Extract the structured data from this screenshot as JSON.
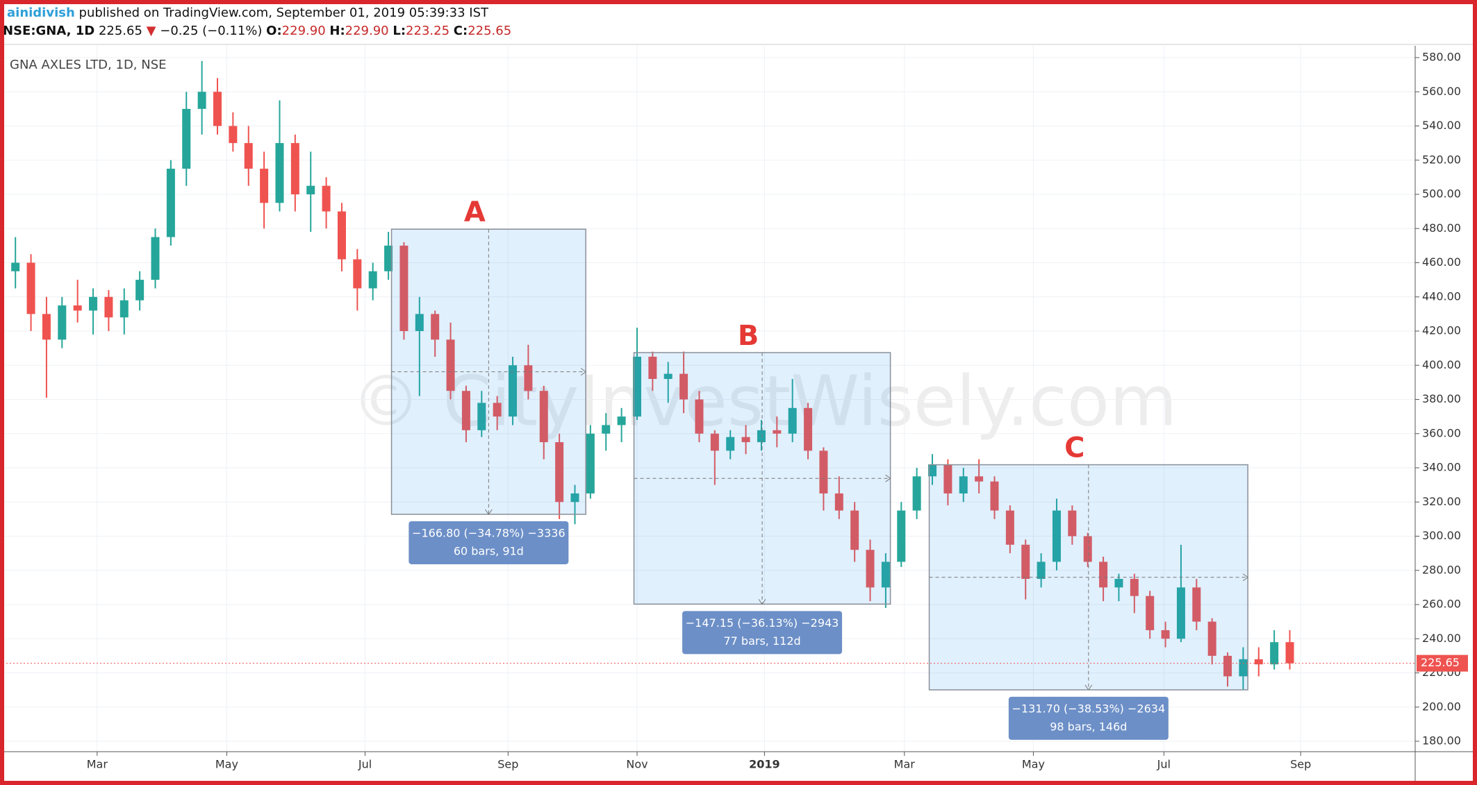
{
  "header": {
    "publisher": "ainidivish",
    "published_text": "published on TradingView.com, September 01, 2019 05:39:33 IST",
    "symbol": "NSE:GNA, 1D",
    "last": "225.65",
    "change": "−0.25 (−0.11%)",
    "ohlc": [
      {
        "label": "O:",
        "value": "229.90"
      },
      {
        "label": "H:",
        "value": "229.90"
      },
      {
        "label": "L:",
        "value": "223.25"
      },
      {
        "label": "C:",
        "value": "225.65"
      }
    ]
  },
  "chart_data": {
    "type": "candlestick",
    "title": "GNA AXLES LTD, 1D, NSE",
    "watermark": "© CityInvestWisely.com",
    "up_color": "#26a69a",
    "down_color": "#ef5350",
    "open": [
      455,
      460,
      430,
      415,
      435,
      432,
      440,
      428,
      438,
      450,
      475,
      515,
      550,
      560,
      540,
      530,
      515,
      495,
      530,
      500,
      505,
      490,
      462,
      445,
      455,
      470,
      420,
      430,
      415,
      385,
      362,
      378,
      370,
      400,
      385,
      355,
      320,
      325,
      360,
      365,
      370,
      405,
      392,
      395,
      380,
      360,
      350,
      358,
      355,
      362,
      360,
      375,
      350,
      325,
      315,
      292,
      270,
      285,
      315,
      335,
      342,
      325,
      335,
      332,
      315,
      295,
      275,
      285,
      315,
      300,
      285,
      270,
      275,
      265,
      245,
      240,
      270,
      250,
      230,
      218,
      228,
      225,
      238
    ],
    "high": [
      475,
      465,
      440,
      440,
      450,
      445,
      444,
      445,
      455,
      480,
      520,
      560,
      578,
      568,
      548,
      540,
      525,
      555,
      535,
      525,
      510,
      495,
      468,
      460,
      478,
      472,
      440,
      432,
      425,
      388,
      385,
      382,
      405,
      412,
      388,
      360,
      330,
      365,
      372,
      375,
      422,
      408,
      402,
      408,
      385,
      362,
      362,
      365,
      368,
      370,
      392,
      378,
      352,
      335,
      320,
      298,
      290,
      320,
      340,
      348,
      345,
      340,
      345,
      335,
      318,
      298,
      290,
      322,
      318,
      302,
      288,
      278,
      278,
      268,
      250,
      295,
      275,
      252,
      232,
      235,
      235,
      245,
      245
    ],
    "low": [
      445,
      420,
      381,
      410,
      425,
      418,
      420,
      418,
      432,
      445,
      470,
      505,
      535,
      535,
      525,
      505,
      480,
      490,
      490,
      478,
      480,
      455,
      432,
      438,
      450,
      415,
      382,
      405,
      380,
      355,
      358,
      362,
      365,
      380,
      345,
      310,
      307,
      322,
      350,
      355,
      368,
      385,
      378,
      372,
      355,
      330,
      345,
      348,
      350,
      352,
      355,
      345,
      315,
      310,
      285,
      262,
      258,
      282,
      310,
      330,
      318,
      320,
      325,
      310,
      290,
      263,
      270,
      280,
      295,
      282,
      262,
      262,
      255,
      240,
      235,
      238,
      245,
      225,
      212,
      210,
      218,
      222,
      222
    ],
    "close": [
      460,
      430,
      415,
      435,
      432,
      440,
      428,
      438,
      450,
      475,
      515,
      550,
      560,
      540,
      530,
      515,
      495,
      530,
      500,
      505,
      490,
      462,
      445,
      455,
      470,
      420,
      430,
      415,
      385,
      362,
      378,
      370,
      400,
      385,
      355,
      320,
      325,
      360,
      365,
      370,
      405,
      392,
      395,
      380,
      360,
      350,
      358,
      355,
      362,
      360,
      375,
      350,
      325,
      315,
      292,
      270,
      285,
      315,
      335,
      342,
      325,
      335,
      332,
      315,
      295,
      275,
      285,
      315,
      300,
      285,
      270,
      275,
      265,
      245,
      240,
      270,
      250,
      230,
      218,
      228,
      225,
      238,
      225.65
    ],
    "ylim": [
      180,
      580
    ],
    "yticks": [
      {
        "value": 180,
        "label": "180.00"
      },
      {
        "value": 200,
        "label": "200.00"
      },
      {
        "value": 220,
        "label": "220.00"
      },
      {
        "value": 240,
        "label": "240.00"
      },
      {
        "value": 260,
        "label": "260.00"
      },
      {
        "value": 280,
        "label": "280.00"
      },
      {
        "value": 300,
        "label": "300.00"
      },
      {
        "value": 320,
        "label": "320.00"
      },
      {
        "value": 340,
        "label": "340.00"
      },
      {
        "value": 360,
        "label": "360.00"
      },
      {
        "value": 380,
        "label": "380.00"
      },
      {
        "value": 400,
        "label": "400.00"
      },
      {
        "value": 420,
        "label": "420.00"
      },
      {
        "value": 440,
        "label": "440.00"
      },
      {
        "value": 460,
        "label": "460.00"
      },
      {
        "value": 480,
        "label": "480.00"
      },
      {
        "value": 500,
        "label": "500.00"
      },
      {
        "value": 520,
        "label": "520.00"
      },
      {
        "value": 540,
        "label": "540.00"
      },
      {
        "value": 560,
        "label": "560.00"
      },
      {
        "value": 580,
        "label": "580.00"
      }
    ],
    "xticks": [
      {
        "value": 5.26,
        "label": "Mar"
      },
      {
        "value": 13.6,
        "label": "May"
      },
      {
        "value": 22.5,
        "label": "Jul"
      },
      {
        "value": 31.7,
        "label": "Sep"
      },
      {
        "value": 40,
        "label": "Nov"
      },
      {
        "value": 48.2,
        "label": "2019"
      },
      {
        "value": 57.2,
        "label": "Mar"
      },
      {
        "value": 65.5,
        "label": "May"
      },
      {
        "value": 73.9,
        "label": "Jul"
      },
      {
        "value": 82.7,
        "label": "Sep"
      }
    ],
    "grid": true,
    "last_price": 225.65,
    "measurements": [
      {
        "name": "A",
        "from_bar": 24.2,
        "to_bar": 36.7,
        "from_price": 479.6,
        "to_price": 312.8,
        "label": [
          "−166.80 (−34.78%) −3336",
          "60 bars, 91d"
        ]
      },
      {
        "name": "B",
        "from_bar": 39.8,
        "to_bar": 56.3,
        "from_price": 407.4,
        "to_price": 260.25,
        "label": [
          "−147.15 (−36.13%) −2943",
          "77 bars, 112d"
        ]
      },
      {
        "name": "C",
        "from_bar": 58.8,
        "to_bar": 79.3,
        "from_price": 341.8,
        "to_price": 210.1,
        "label": [
          "−131.70 (−38.53%) −2634",
          "98 bars, 146d"
        ]
      }
    ]
  }
}
